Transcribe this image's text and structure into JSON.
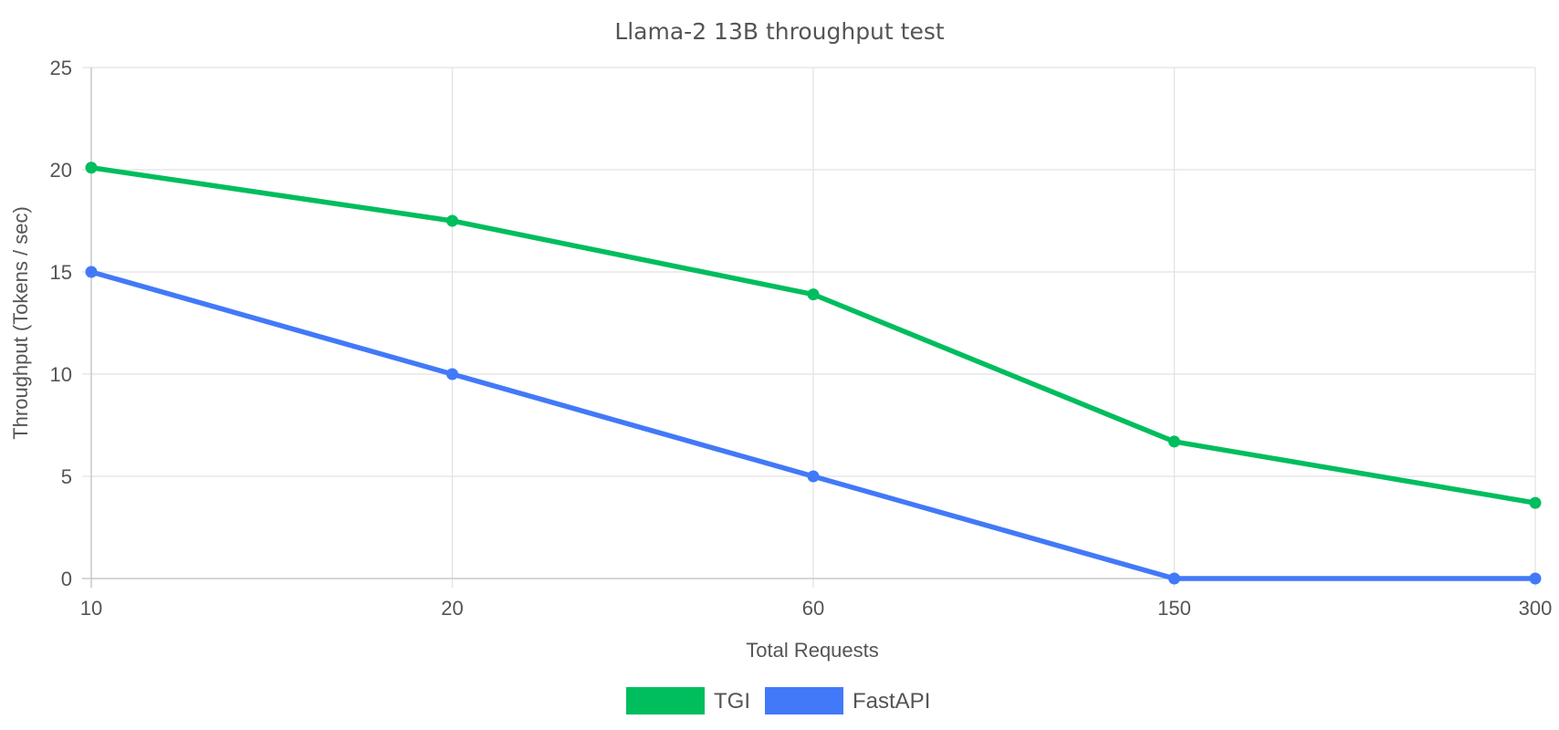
{
  "chart_data": {
    "type": "line",
    "title": "Llama-2 13B throughput test",
    "xlabel": "Total Requests",
    "ylabel": "Throughput (Tokens / sec)",
    "categories": [
      "10",
      "20",
      "60",
      "150",
      "300"
    ],
    "ylim": [
      0,
      25
    ],
    "yticks": [
      0,
      5,
      10,
      15,
      20,
      25
    ],
    "grid": true,
    "legend_position": "bottom",
    "series": [
      {
        "name": "TGI",
        "color": "#00bd5e",
        "values": [
          20.1,
          17.5,
          13.9,
          6.7,
          3.7
        ]
      },
      {
        "name": "FastAPI",
        "color": "#4279f8",
        "values": [
          15,
          10,
          5,
          0,
          0
        ]
      }
    ]
  }
}
